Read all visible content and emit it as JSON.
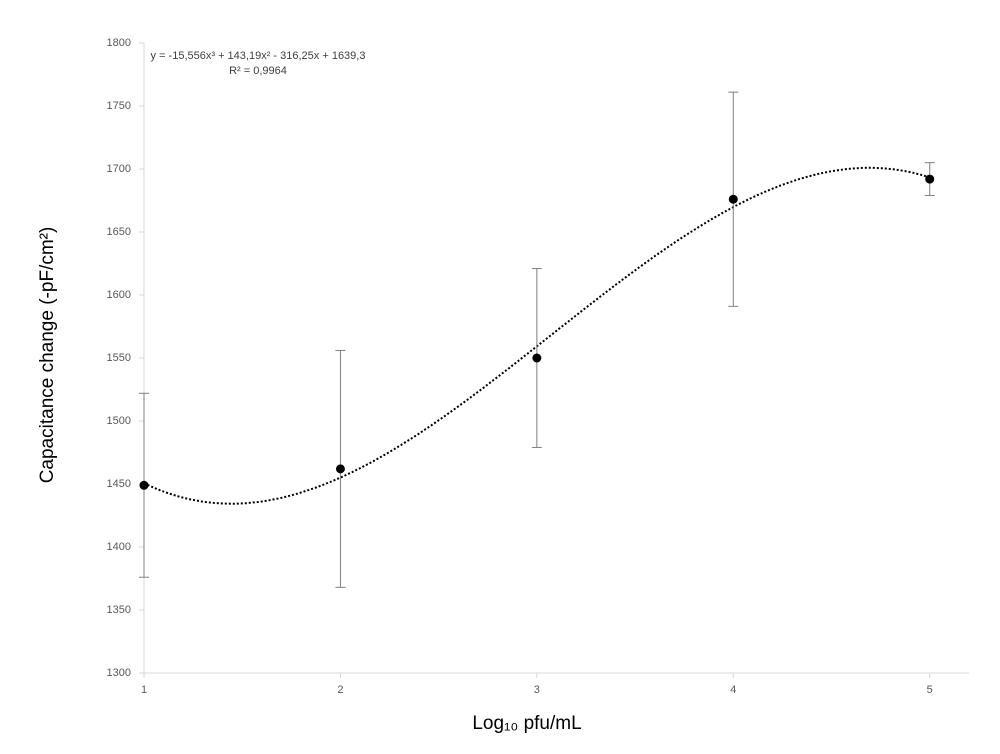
{
  "chart_data": {
    "type": "scatter",
    "x_label": "Log₁₀ pfu/mL",
    "y_label": "Capacitance change (-pF/cm²)",
    "x": [
      1,
      2,
      3,
      4,
      5
    ],
    "series": [
      {
        "color": "#000000",
        "values": [
          1449,
          1462,
          1550,
          1676,
          1692
        ],
        "errors": [
          73,
          94,
          71,
          85,
          13
        ]
      }
    ],
    "trendline": {
      "equation": "y = -15,556x³ + 143,19x² - 316,25x + 1639,3",
      "r2": "R² = 0,9964"
    },
    "xlim": [
      1,
      5.2
    ],
    "xticks": [
      1,
      2,
      3,
      4,
      5
    ],
    "ylim": [
      1300,
      1800
    ],
    "yticks": [
      1300,
      1350,
      1400,
      1450,
      1500,
      1550,
      1600,
      1650,
      1700,
      1750,
      1800
    ]
  }
}
